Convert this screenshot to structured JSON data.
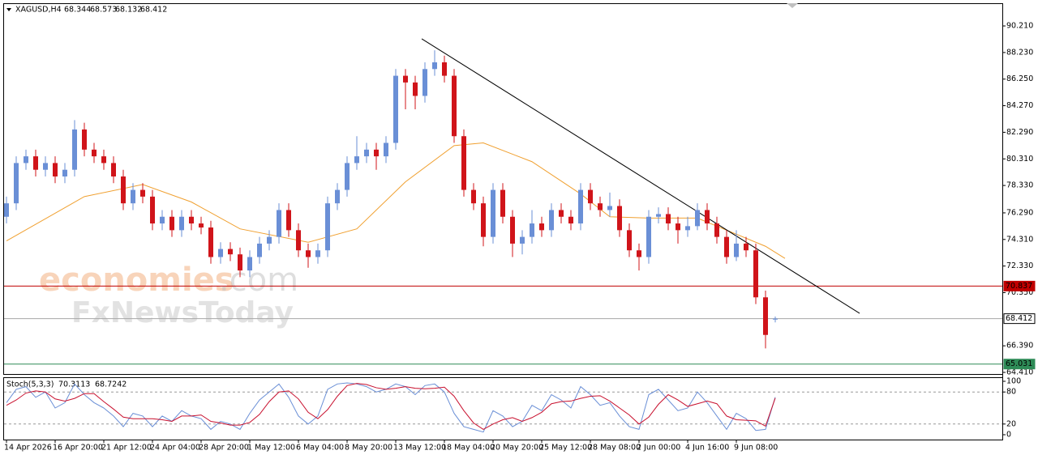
{
  "chart_data": [
    {
      "type": "candlestick",
      "symbol": "XAGUSD,H4",
      "categories": [
        "14 Apr 2026",
        null,
        null,
        null,
        null,
        "16 Apr 20:00",
        null,
        null,
        null,
        null,
        "21 Apr 12:00",
        null,
        null,
        null,
        null,
        "24 Apr 04:00",
        null,
        null,
        null,
        null,
        "28 Apr 20:00",
        null,
        null,
        null,
        null,
        "1 May 12:00",
        null,
        null,
        null,
        null,
        "6 May 04:00",
        null,
        null,
        null,
        null,
        "8 May 20:00",
        null,
        null,
        null,
        null,
        "13 May 12:00",
        null,
        null,
        null,
        null,
        "18 May 04:00",
        null,
        null,
        null,
        null,
        "20 May 20:00",
        null,
        null,
        null,
        null,
        "25 May 12:00",
        null,
        null,
        null,
        null,
        "28 May 08:00",
        null,
        null,
        null,
        null,
        "2 Jun 00:00",
        null,
        null,
        null,
        null,
        "4 Jun 16:00",
        null,
        null,
        null,
        null,
        "9 Jun 08:00",
        null,
        null,
        null,
        null
      ],
      "open": [
        76.0,
        77.0,
        80.0,
        80.5,
        79.5,
        80.0,
        79.0,
        79.5,
        82.5,
        81.0,
        80.5,
        80.0,
        79.0,
        77.0,
        78.0,
        77.5,
        75.5,
        76.0,
        75.0,
        76.0,
        75.5,
        75.2,
        73.0,
        73.6,
        73.2,
        72.0,
        73.0,
        74.0,
        74.5,
        76.5,
        75.0,
        73.5,
        73.0,
        73.5,
        77.0,
        78.0,
        80.0,
        80.5,
        81.0,
        80.5,
        81.5,
        86.5,
        86.0,
        85.0,
        87.0,
        87.5,
        86.5,
        82.0,
        78.0,
        77.0,
        74.5,
        78.0,
        76.0,
        74.0,
        74.5,
        75.5,
        75.0,
        76.5,
        76.0,
        75.5,
        78.0,
        77.0,
        76.5,
        76.8,
        75.0,
        73.5,
        73.0,
        76.0,
        76.2,
        75.5,
        75.0,
        75.3,
        76.5,
        75.5,
        74.5,
        73.0,
        74.0,
        73.5,
        70.0,
        68.344
      ],
      "high": [
        77.5,
        80.5,
        81.0,
        81.0,
        80.5,
        80.5,
        80.0,
        83.2,
        83.0,
        81.5,
        81.0,
        80.5,
        79.5,
        78.5,
        78.5,
        78.0,
        76.5,
        76.5,
        76.5,
        76.5,
        76.0,
        75.7,
        74.1,
        74.1,
        73.7,
        73.5,
        74.5,
        75.0,
        77.0,
        77.0,
        75.5,
        74.0,
        74.0,
        77.5,
        78.5,
        80.5,
        82.0,
        81.5,
        81.5,
        82.0,
        87.0,
        87.0,
        86.5,
        87.5,
        88.4,
        88.0,
        87.0,
        82.5,
        78.5,
        77.5,
        78.5,
        78.5,
        76.5,
        75.0,
        76.5,
        76.0,
        77.0,
        77.0,
        76.5,
        78.5,
        78.5,
        77.5,
        77.8,
        77.3,
        75.5,
        74.0,
        76.5,
        76.7,
        76.7,
        76.0,
        76.0,
        77.0,
        77.0,
        76.0,
        75.0,
        75.0,
        74.5,
        74.0,
        70.5,
        68.573
      ],
      "low": [
        75.5,
        76.5,
        79.5,
        79.0,
        79.0,
        78.5,
        78.5,
        79.0,
        80.5,
        80.0,
        79.5,
        78.5,
        76.5,
        76.5,
        77.0,
        75.0,
        75.0,
        74.5,
        74.5,
        75.0,
        74.7,
        72.5,
        72.5,
        72.7,
        71.5,
        71.5,
        72.5,
        73.5,
        74.0,
        74.5,
        73.0,
        72.2,
        72.5,
        73.0,
        76.5,
        77.5,
        79.5,
        80.0,
        79.5,
        80.0,
        81.0,
        84.0,
        84.0,
        84.5,
        86.5,
        86.0,
        81.5,
        77.5,
        76.5,
        73.8,
        74.0,
        75.5,
        73.0,
        73.2,
        74.0,
        74.5,
        74.5,
        75.5,
        75.0,
        75.0,
        76.5,
        76.0,
        76.0,
        74.5,
        73.0,
        72.0,
        72.5,
        75.5,
        75.0,
        74.0,
        74.5,
        75.0,
        75.0,
        74.0,
        72.5,
        72.7,
        73.0,
        69.5,
        66.2,
        68.132
      ],
      "close": [
        77.0,
        80.0,
        80.5,
        79.5,
        80.0,
        79.0,
        79.5,
        82.5,
        81.0,
        80.5,
        80.0,
        79.0,
        77.0,
        78.0,
        77.5,
        75.5,
        76.0,
        75.0,
        76.0,
        75.5,
        75.2,
        73.0,
        73.6,
        73.2,
        72.0,
        73.0,
        74.0,
        74.5,
        76.5,
        75.0,
        73.5,
        73.0,
        73.5,
        77.0,
        78.0,
        80.0,
        80.5,
        81.0,
        80.5,
        81.5,
        86.5,
        86.0,
        85.0,
        87.0,
        87.5,
        86.5,
        82.0,
        78.0,
        77.0,
        74.5,
        78.0,
        76.0,
        74.0,
        74.5,
        75.5,
        75.0,
        76.5,
        76.0,
        75.5,
        78.0,
        77.0,
        76.5,
        76.8,
        75.0,
        73.5,
        73.0,
        76.0,
        76.2,
        75.5,
        75.0,
        75.3,
        76.5,
        75.5,
        74.5,
        73.0,
        74.0,
        73.5,
        70.0,
        67.2,
        68.412
      ],
      "up_color": "#6a8fd6",
      "down_color": "#d0141a",
      "ma": {
        "color": "#f0a030",
        "x": [
          0,
          8,
          14,
          19,
          24,
          31,
          36,
          41,
          46,
          49,
          54,
          59,
          62,
          66,
          71,
          74,
          78,
          80
        ],
        "values": [
          74.2,
          77.5,
          78.4,
          77.1,
          75.1,
          74.1,
          75.1,
          78.6,
          81.3,
          81.5,
          80.1,
          77.7,
          76.0,
          75.9,
          75.9,
          75.0,
          73.8,
          72.9
        ]
      },
      "trendline": {
        "color": "#000000",
        "x": [
          42.67,
          87.67
        ],
        "values": [
          89.25,
          68.81
        ]
      },
      "hlines": [
        {
          "value": 70.837,
          "color": "#c00000"
        },
        {
          "value": 68.412,
          "color": "#a6a6a6"
        },
        {
          "value": 65.031,
          "color": "#2e8b57"
        }
      ],
      "ylim": [
        64.29,
        91.84
      ],
      "yticks": [
        {
          "value": 90.21,
          "label": "90.210"
        },
        {
          "value": 88.23,
          "label": "88.230"
        },
        {
          "value": 86.25,
          "label": "86.250"
        },
        {
          "value": 84.27,
          "label": "84.270"
        },
        {
          "value": 82.29,
          "label": "82.290"
        },
        {
          "value": 80.31,
          "label": "80.310"
        },
        {
          "value": 78.33,
          "label": "78.330"
        },
        {
          "value": 76.29,
          "label": "76.290"
        },
        {
          "value": 74.31,
          "label": "74.310"
        },
        {
          "value": 72.33,
          "label": "72.330"
        },
        {
          "value": 70.35,
          "label": "70.350"
        },
        {
          "value": 66.39,
          "label": "66.390"
        },
        {
          "value": 64.41,
          "label": "64.410"
        }
      ],
      "grid": false
    },
    {
      "type": "line",
      "title": "Stoch(5,3,3)",
      "series": [
        {
          "name": "Main",
          "color": "#6a8fd6",
          "values": [
            60,
            85,
            90,
            70,
            80,
            50,
            60,
            95,
            75,
            60,
            50,
            35,
            15,
            40,
            35,
            15,
            35,
            25,
            45,
            35,
            30,
            10,
            25,
            20,
            10,
            40,
            65,
            80,
            95,
            70,
            35,
            20,
            35,
            85,
            95,
            97,
            95,
            90,
            80,
            85,
            95,
            90,
            75,
            92,
            95,
            80,
            40,
            15,
            10,
            5,
            45,
            35,
            15,
            25,
            55,
            45,
            75,
            65,
            50,
            90,
            75,
            55,
            60,
            35,
            15,
            10,
            75,
            85,
            65,
            45,
            50,
            80,
            60,
            35,
            10,
            40,
            30,
            8,
            10,
            70.3113
          ]
        },
        {
          "name": "Signal",
          "color": "#c8102e",
          "values": [
            55,
            65,
            78,
            82,
            80,
            67,
            63,
            68,
            77,
            77,
            62,
            48,
            33,
            30,
            30,
            30,
            28,
            25,
            35,
            35,
            37,
            25,
            22,
            18,
            18,
            23,
            38,
            62,
            80,
            82,
            67,
            42,
            30,
            47,
            72,
            92,
            96,
            94,
            88,
            85,
            87,
            90,
            87,
            86,
            87,
            89,
            72,
            45,
            22,
            10,
            20,
            28,
            32,
            25,
            32,
            42,
            58,
            62,
            63,
            68,
            72,
            73,
            63,
            50,
            37,
            20,
            33,
            57,
            75,
            65,
            53,
            58,
            63,
            58,
            35,
            28,
            27,
            26,
            16,
            68.7242
          ]
        }
      ],
      "levels": [
        80,
        20
      ],
      "ylim": [
        -9.1,
        107.6
      ],
      "yticks": [
        100,
        80,
        20,
        0
      ]
    }
  ],
  "watermarks": [
    "economies",
    ".com",
    "FxNewsToday"
  ]
}
